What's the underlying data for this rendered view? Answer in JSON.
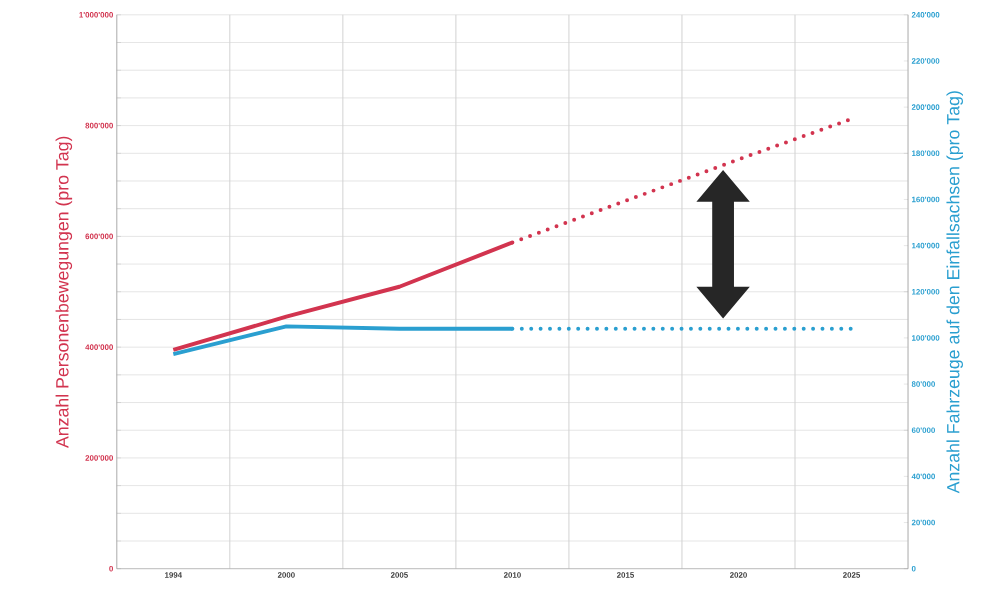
{
  "chart_data": {
    "type": "line",
    "categories": [
      "1994",
      "2000",
      "2005",
      "2010",
      "2015",
      "2020",
      "2025"
    ],
    "ylabel": "Anzahl Personenbewegungen (pro Tag)",
    "y2label": "Anzahl Fahrzeuge auf den Einfallsachsen (pro Tag)",
    "ylim": [
      0,
      1000000
    ],
    "yticks": [
      {
        "value": 0,
        "label": "0"
      },
      {
        "value": 50000,
        "label": null
      },
      {
        "value": 100000,
        "label": null
      },
      {
        "value": 150000,
        "label": null
      },
      {
        "value": 200000,
        "label": "200'000"
      },
      {
        "value": 250000,
        "label": null
      },
      {
        "value": 300000,
        "label": null
      },
      {
        "value": 350000,
        "label": null
      },
      {
        "value": 400000,
        "label": "400'000"
      },
      {
        "value": 450000,
        "label": null
      },
      {
        "value": 500000,
        "label": null
      },
      {
        "value": 550000,
        "label": null
      },
      {
        "value": 600000,
        "label": "600'000"
      },
      {
        "value": 650000,
        "label": null
      },
      {
        "value": 700000,
        "label": null
      },
      {
        "value": 750000,
        "label": null
      },
      {
        "value": 800000,
        "label": "800'000"
      },
      {
        "value": 850000,
        "label": null
      },
      {
        "value": 900000,
        "label": null
      },
      {
        "value": 950000,
        "label": null
      },
      {
        "value": 1000000,
        "label": "1'000'000"
      }
    ],
    "y2lim": [
      0,
      240000
    ],
    "y2ticks": [
      {
        "value": 0,
        "label": "0"
      },
      {
        "value": 20000,
        "label": "20'000"
      },
      {
        "value": 40000,
        "label": "40'000"
      },
      {
        "value": 60000,
        "label": "60'000"
      },
      {
        "value": 80000,
        "label": "80'000"
      },
      {
        "value": 100000,
        "label": "100'000"
      },
      {
        "value": 120000,
        "label": "120'000"
      },
      {
        "value": 140000,
        "label": "140'000"
      },
      {
        "value": 160000,
        "label": "160'000"
      },
      {
        "value": 180000,
        "label": "180'000"
      },
      {
        "value": 200000,
        "label": "200'000"
      },
      {
        "value": 220000,
        "label": "220'000"
      },
      {
        "value": 240000,
        "label": "240'000"
      }
    ],
    "grid": true,
    "series": [
      {
        "color": "#d2344f",
        "values": [
          395000,
          455000,
          509000,
          589000,
          null,
          null,
          null
        ]
      },
      {
        "color": "#d2344f",
        "line_style": "dotted",
        "values": [
          null,
          null,
          null,
          589000,
          664000,
          739000,
          812000
        ]
      },
      {
        "color": "#2a9fd0",
        "axis": "y2",
        "values": [
          93000,
          105000,
          104000,
          104000,
          null,
          null,
          null
        ]
      },
      {
        "color": "#2a9fd0",
        "axis": "y2",
        "line_style": "dotted",
        "values": [
          null,
          null,
          null,
          104000,
          104000,
          104000,
          104000
        ]
      }
    ]
  }
}
